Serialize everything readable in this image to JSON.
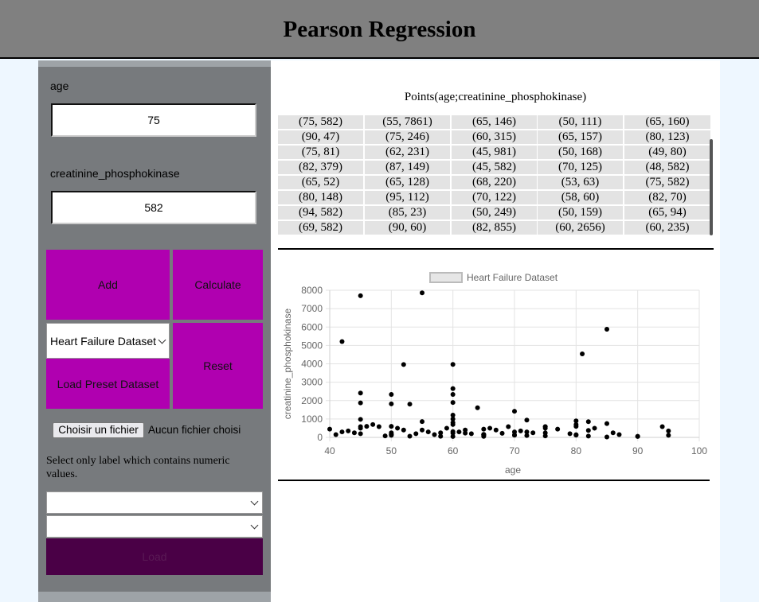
{
  "header": {
    "title": "Pearson Regression"
  },
  "sidebar": {
    "x_label": "age",
    "x_value": "75",
    "y_label": "creatinine_phosphokinase",
    "y_value": "582",
    "add_label": "Add",
    "calculate_label": "Calculate",
    "dataset_select": "Heart Failure Dataset",
    "load_label": "Load Preset Dataset",
    "reset_label": "Reset",
    "file_button": "Choisir un fichier",
    "file_status": "Aucun fichier choisi",
    "note": "Select only label which contains numeric values.",
    "select1": "",
    "select2": "",
    "submit_label": "Load"
  },
  "points": {
    "title": "Points(age;creatinine_phosphokinase)",
    "rows": [
      [
        "(75, 582)",
        "(55, 7861)",
        "(65, 146)",
        "(50, 111)",
        "(65, 160)"
      ],
      [
        "(90, 47)",
        "(75, 246)",
        "(60, 315)",
        "(65, 157)",
        "(80, 123)"
      ],
      [
        "(75, 81)",
        "(62, 231)",
        "(45, 981)",
        "(50, 168)",
        "(49, 80)"
      ],
      [
        "(82, 379)",
        "(87, 149)",
        "(45, 582)",
        "(70, 125)",
        "(48, 582)"
      ],
      [
        "(65, 52)",
        "(65, 128)",
        "(68, 220)",
        "(53, 63)",
        "(75, 582)"
      ],
      [
        "(80, 148)",
        "(95, 112)",
        "(70, 122)",
        "(58, 60)",
        "(82, 70)"
      ],
      [
        "(94, 582)",
        "(85, 23)",
        "(50, 249)",
        "(50, 159)",
        "(65, 94)"
      ],
      [
        "(69, 582)",
        "(90, 60)",
        "(82, 855)",
        "(60, 2656)",
        "(60, 235)"
      ]
    ]
  },
  "chart_data": {
    "type": "scatter",
    "title": "",
    "legend": [
      "Heart Failure Dataset"
    ],
    "legend_position": "top",
    "xlabel": "age",
    "ylabel": "creatinine_phosphokinase",
    "xlim": [
      40,
      100
    ],
    "ylim": [
      0,
      8000
    ],
    "xticks": [
      40,
      50,
      60,
      70,
      80,
      90,
      100
    ],
    "yticks": [
      0,
      1000,
      2000,
      3000,
      4000,
      5000,
      6000,
      7000,
      8000
    ],
    "grid": true,
    "point_color": "#000000",
    "series": [
      {
        "name": "Heart Failure Dataset",
        "x": [
          75,
          55,
          65,
          50,
          65,
          90,
          75,
          60,
          65,
          80,
          75,
          62,
          45,
          50,
          49,
          82,
          87,
          45,
          70,
          48,
          65,
          65,
          68,
          53,
          75,
          80,
          95,
          70,
          58,
          82,
          94,
          85,
          50,
          50,
          65,
          69,
          90,
          82,
          60,
          60,
          45,
          42,
          52,
          60,
          85,
          81,
          60,
          60,
          45,
          45,
          50,
          50,
          53,
          55,
          60,
          64,
          70,
          72,
          60,
          60,
          45,
          42,
          40,
          41,
          43,
          44,
          46,
          47,
          51,
          52,
          54,
          56,
          57,
          58,
          59,
          61,
          63,
          66,
          67,
          71,
          72,
          73,
          77,
          79,
          80,
          80,
          83,
          86,
          95,
          60,
          62,
          65,
          70,
          75,
          85,
          50,
          55,
          45,
          60,
          72,
          80
        ],
        "y": [
          582,
          7861,
          146,
          111,
          160,
          47,
          246,
          315,
          157,
          123,
          81,
          231,
          981,
          168,
          80,
          379,
          149,
          582,
          125,
          582,
          52,
          128,
          220,
          63,
          582,
          148,
          112,
          122,
          60,
          70,
          582,
          23,
          249,
          159,
          94,
          582,
          60,
          855,
          2656,
          235,
          7702,
          5209,
          3964,
          3966,
          5882,
          4540,
          2334,
          1896,
          2413,
          1876,
          2334,
          1820,
          1808,
          862,
          1211,
          1610,
          1419,
          943,
          700,
          800,
          500,
          300,
          450,
          150,
          350,
          250,
          600,
          700,
          500,
          400,
          200,
          300,
          150,
          250,
          500,
          300,
          200,
          500,
          400,
          350,
          300,
          250,
          450,
          200,
          600,
          900,
          500,
          250,
          350,
          1000,
          400,
          450,
          300,
          500,
          750,
          600,
          400,
          200,
          50,
          100,
          700
        ]
      }
    ]
  },
  "colors": {
    "button": "#b000b0",
    "submit": "#4a0046",
    "sidebar": "#777a7d",
    "header": "#808080"
  }
}
